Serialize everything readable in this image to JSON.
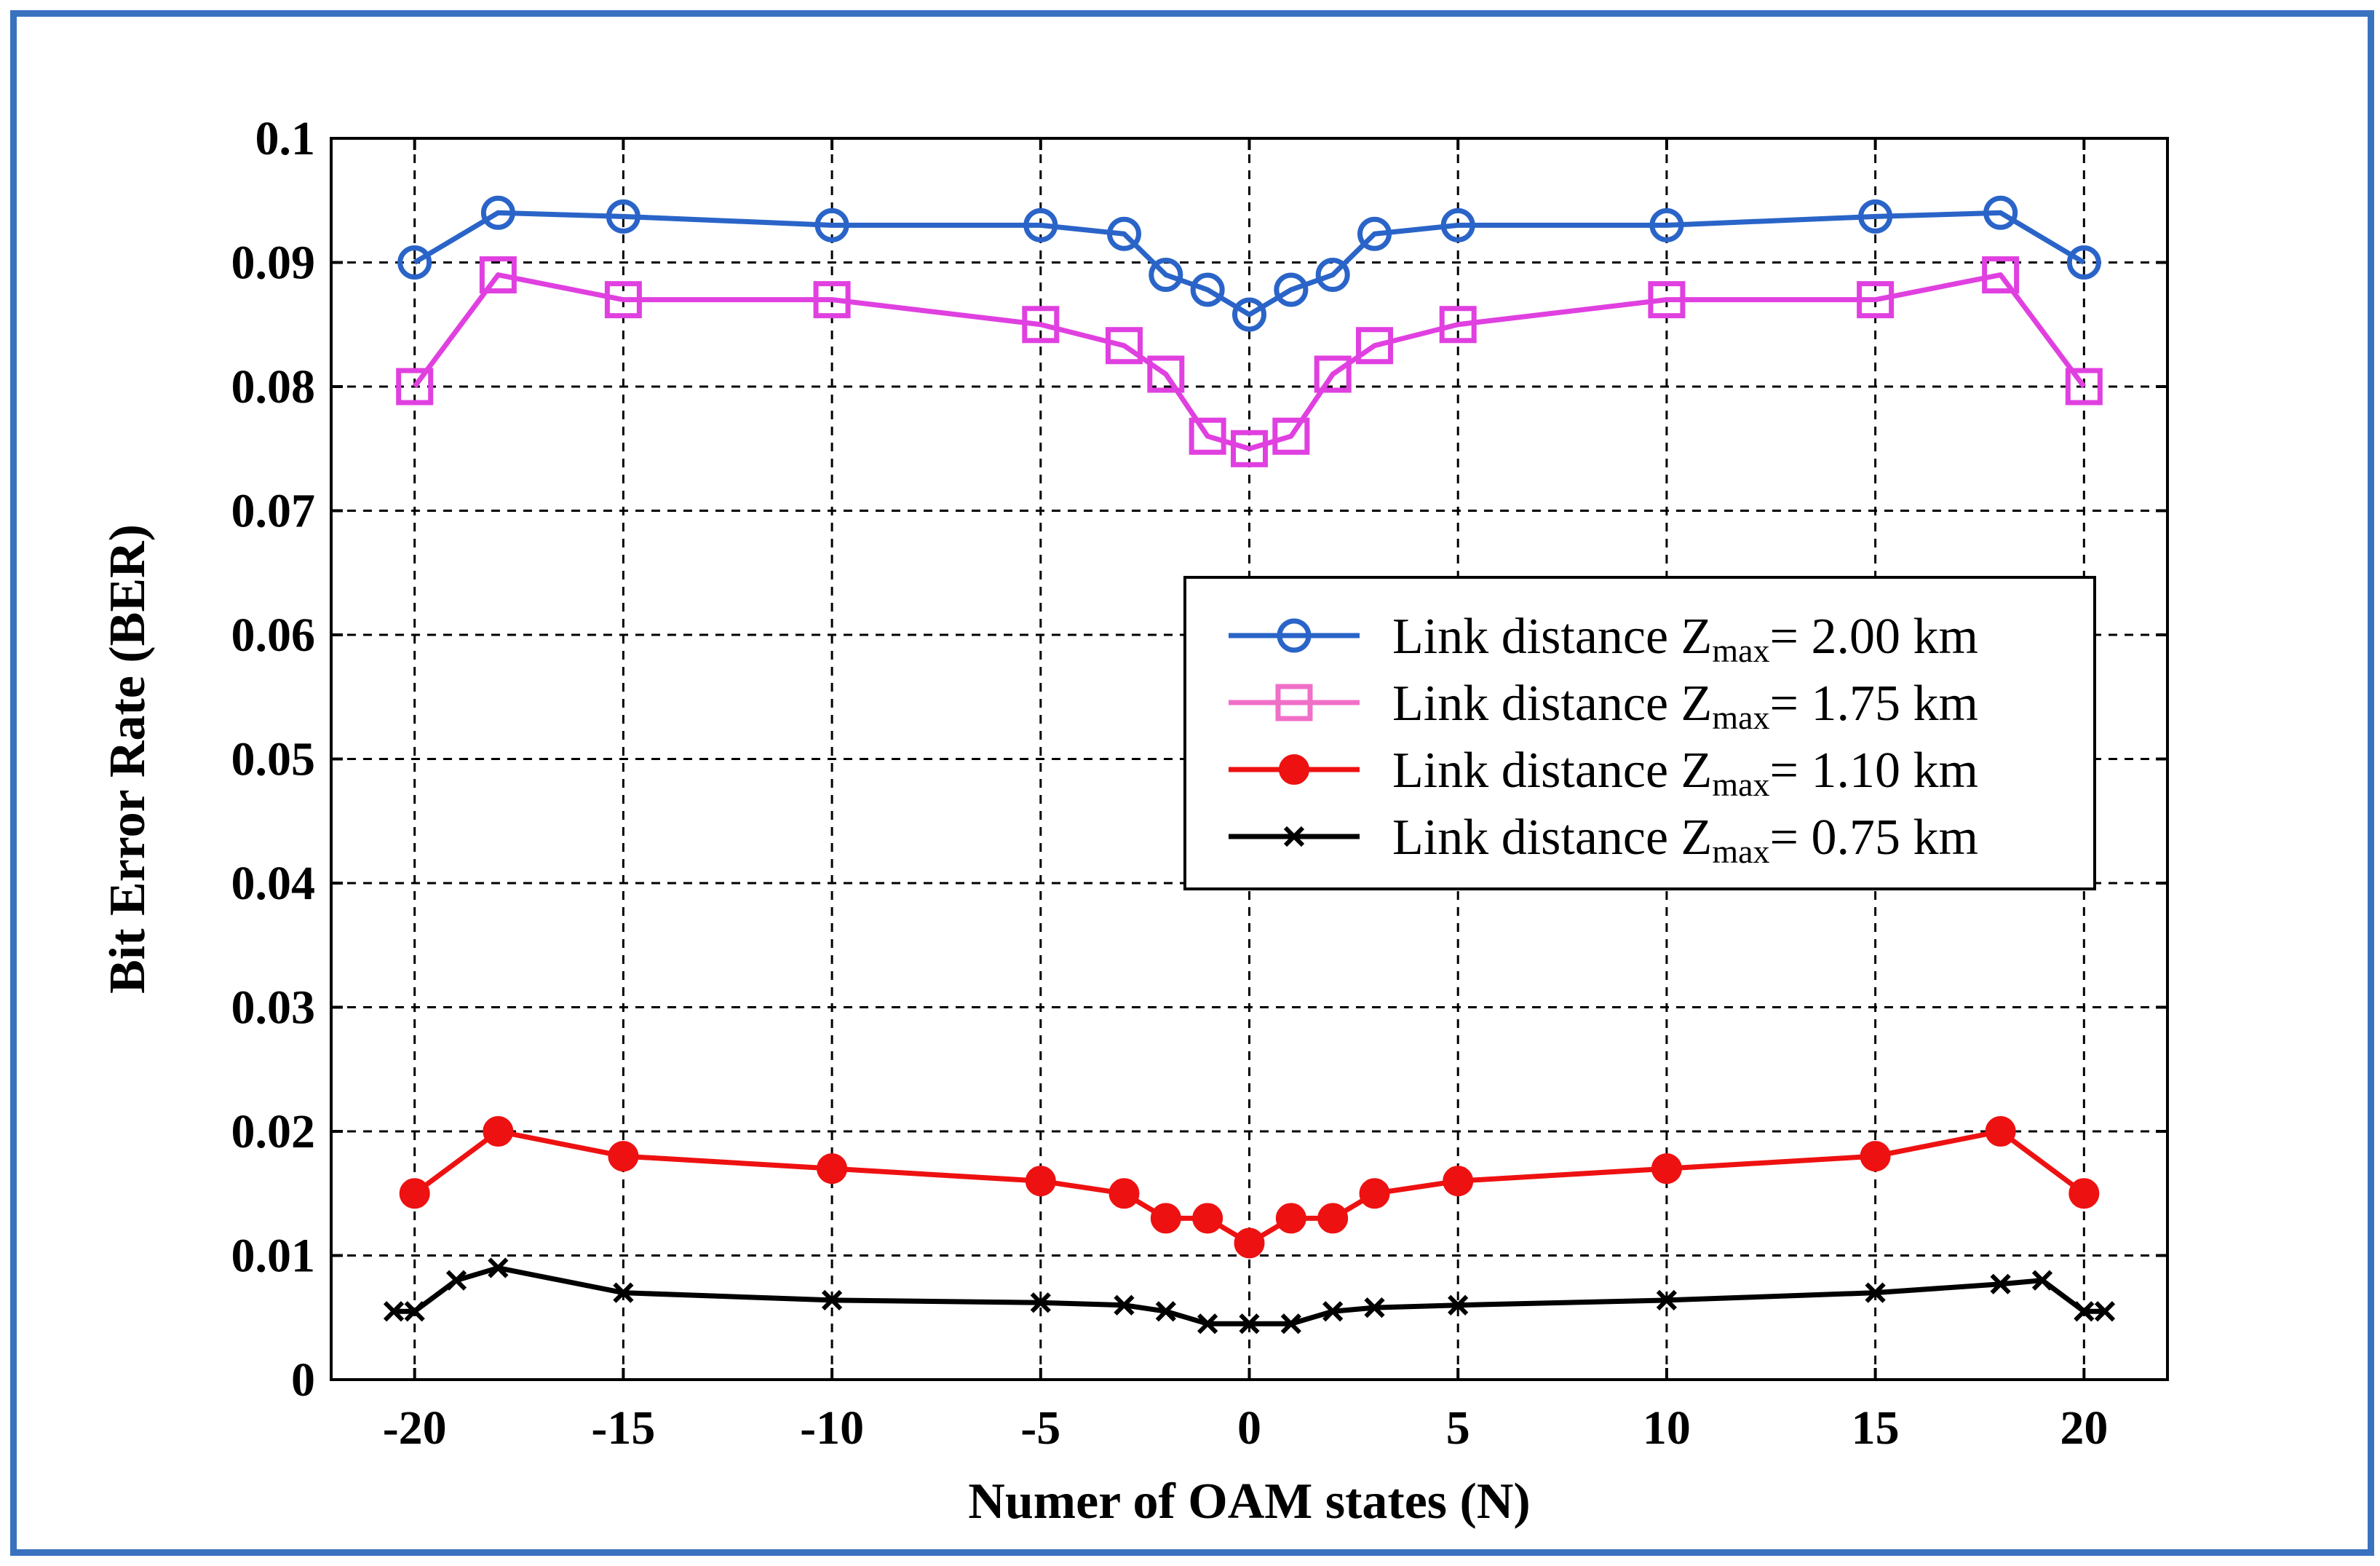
{
  "chart_data": {
    "type": "line",
    "title": "",
    "xlabel": "Numer of OAM states (N)",
    "ylabel": "Bit Error Rate (BER)",
    "xlim": [
      -22,
      22
    ],
    "ylim": [
      0,
      0.1
    ],
    "grid": true,
    "legend_position": "center-right",
    "x_ticks": [
      -20,
      -15,
      -10,
      -5,
      0,
      5,
      10,
      15,
      20
    ],
    "x_tick_labels": [
      "-20",
      "-15",
      "-10",
      "-5",
      "0",
      "5",
      "10",
      "15",
      "20"
    ],
    "y_ticks": [
      0,
      0.01,
      0.02,
      0.03,
      0.04,
      0.05,
      0.06,
      0.07,
      0.08,
      0.09,
      0.1
    ],
    "y_tick_labels": [
      "0",
      "0.01",
      "0.02",
      "0.03",
      "0.04",
      "0.05",
      "0.06",
      "0.07",
      "0.08",
      "0.09",
      "0.1"
    ],
    "series": [
      {
        "name": "Link distance Zmax= 2.00 km",
        "legend_prefix": "Link distance Z",
        "legend_sub": "max",
        "legend_suffix": "= 2.00 km",
        "color": "#2a64c8",
        "marker": "circle-open",
        "x": [
          -20,
          -18,
          -15,
          -10,
          -5,
          -3,
          -2,
          -1,
          0,
          1,
          2,
          3,
          5,
          10,
          15,
          18,
          20
        ],
        "y": [
          0.09,
          0.094,
          0.0937,
          0.093,
          0.093,
          0.0923,
          0.089,
          0.0878,
          0.0858,
          0.0878,
          0.089,
          0.0923,
          0.093,
          0.093,
          0.0937,
          0.094,
          0.09
        ]
      },
      {
        "name": "Link distance Zmax= 1.75 km",
        "legend_prefix": "Link distance Z",
        "legend_sub": "max",
        "legend_suffix": "= 1.75 km",
        "color": "#e040e0",
        "legend_color": "#f070c8",
        "marker": "square-open",
        "x": [
          -20,
          -18,
          -15,
          -10,
          -5,
          -3,
          -2,
          -1,
          0,
          1,
          2,
          3,
          5,
          10,
          15,
          18,
          20
        ],
        "y": [
          0.08,
          0.089,
          0.087,
          0.087,
          0.085,
          0.0833,
          0.081,
          0.076,
          0.075,
          0.076,
          0.081,
          0.0833,
          0.085,
          0.087,
          0.087,
          0.089,
          0.08
        ]
      },
      {
        "name": "Link distance Zmax= 1.10 km",
        "legend_prefix": "Link distance Z",
        "legend_sub": "max",
        "legend_suffix": "= 1.10 km",
        "color": "#ee1111",
        "marker": "circle-filled",
        "x": [
          -20,
          -18,
          -15,
          -10,
          -5,
          -3,
          -2,
          -1,
          0,
          1,
          2,
          3,
          5,
          10,
          15,
          18,
          20
        ],
        "y": [
          0.015,
          0.02,
          0.018,
          0.017,
          0.016,
          0.015,
          0.013,
          0.013,
          0.011,
          0.013,
          0.013,
          0.015,
          0.016,
          0.017,
          0.018,
          0.02,
          0.015
        ]
      },
      {
        "name": "Link distance Zmax= 0.75 km",
        "legend_prefix": "Link distance Z",
        "legend_sub": "max",
        "legend_suffix": "= 0.75 km",
        "color": "#000000",
        "marker": "x",
        "x": [
          -20.5,
          -20,
          -19,
          -18,
          -15,
          -10,
          -5,
          -3,
          -2,
          -1,
          0,
          1,
          2,
          3,
          5,
          10,
          15,
          18,
          19,
          20,
          20.5
        ],
        "y": [
          0.0055,
          0.0055,
          0.008,
          0.009,
          0.007,
          0.0064,
          0.0062,
          0.006,
          0.0055,
          0.0045,
          0.0045,
          0.0045,
          0.0055,
          0.0058,
          0.006,
          0.0064,
          0.007,
          0.0077,
          0.008,
          0.0055,
          0.0055
        ]
      }
    ]
  }
}
